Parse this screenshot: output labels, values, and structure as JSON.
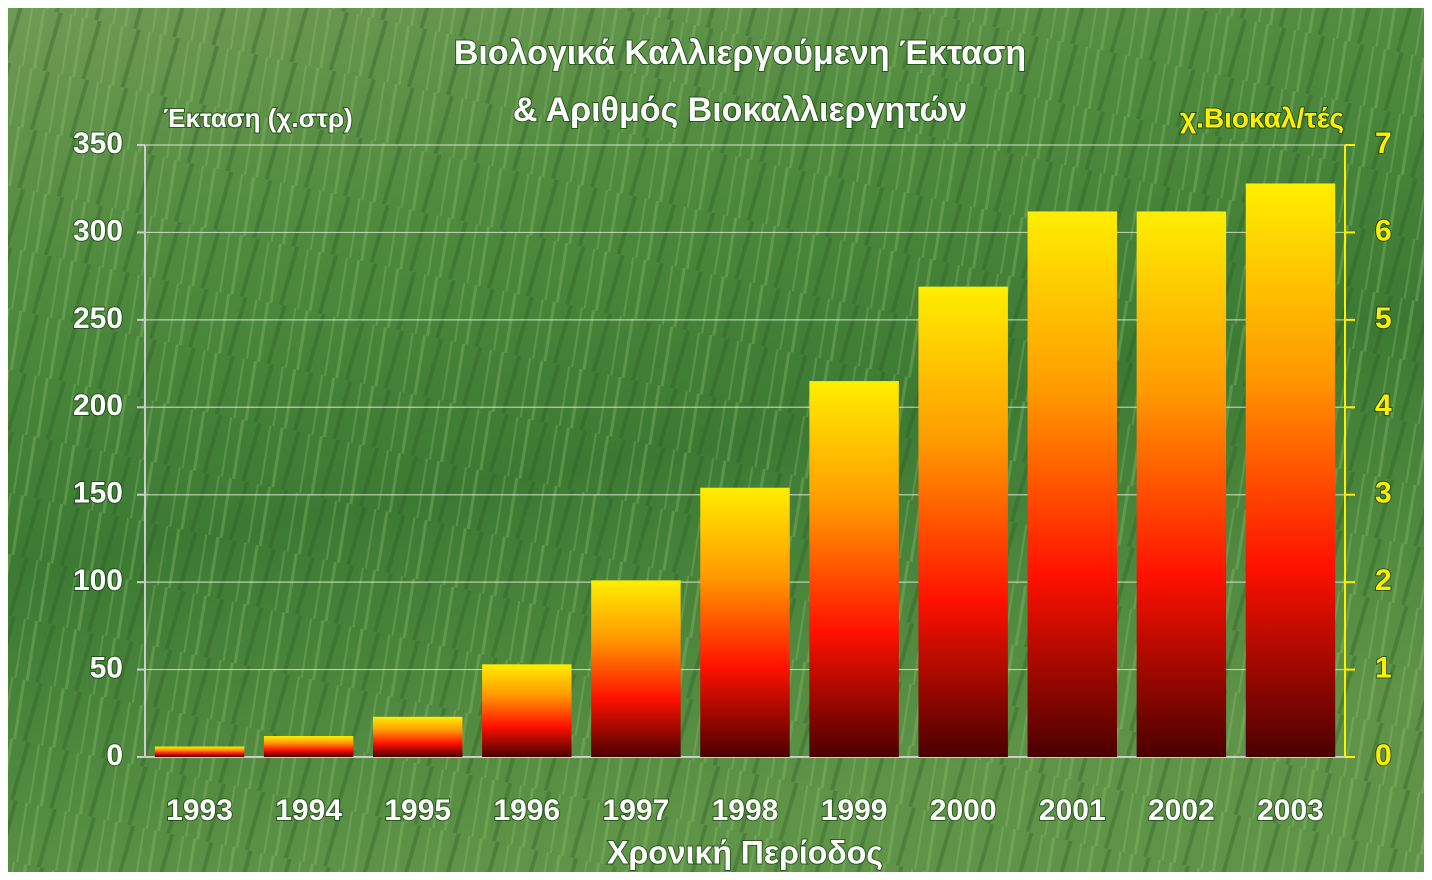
{
  "chart_data": {
    "type": "bar",
    "title": [
      "Βιολογικά Καλλιεργούμενη Έκταση",
      "& Αριθμός Βιοκαλλιεργητών"
    ],
    "y_label": "Έκταση (χ.στρ)",
    "y2_label": "χ.Βιοκαλ/τές",
    "x_label": "Χρονική Περίοδος",
    "categories": [
      "1993",
      "1994",
      "1995",
      "1996",
      "1997",
      "1998",
      "1999",
      "2000",
      "2001",
      "2002",
      "2003"
    ],
    "values": [
      6,
      12,
      23,
      53,
      101,
      154,
      215,
      269,
      312,
      312,
      328
    ],
    "color_stops": [
      "#ffee00",
      "#ff9900",
      "#ff1100",
      "#4a0000"
    ],
    "ylim": [
      0,
      350
    ],
    "yticks": [
      0,
      50,
      100,
      150,
      200,
      250,
      300,
      350
    ],
    "y2lim": [
      0,
      7
    ],
    "y2ticks": [
      0,
      1,
      2,
      3,
      4,
      5,
      6,
      7
    ],
    "y2_color": "#ffee00",
    "grid": true
  }
}
